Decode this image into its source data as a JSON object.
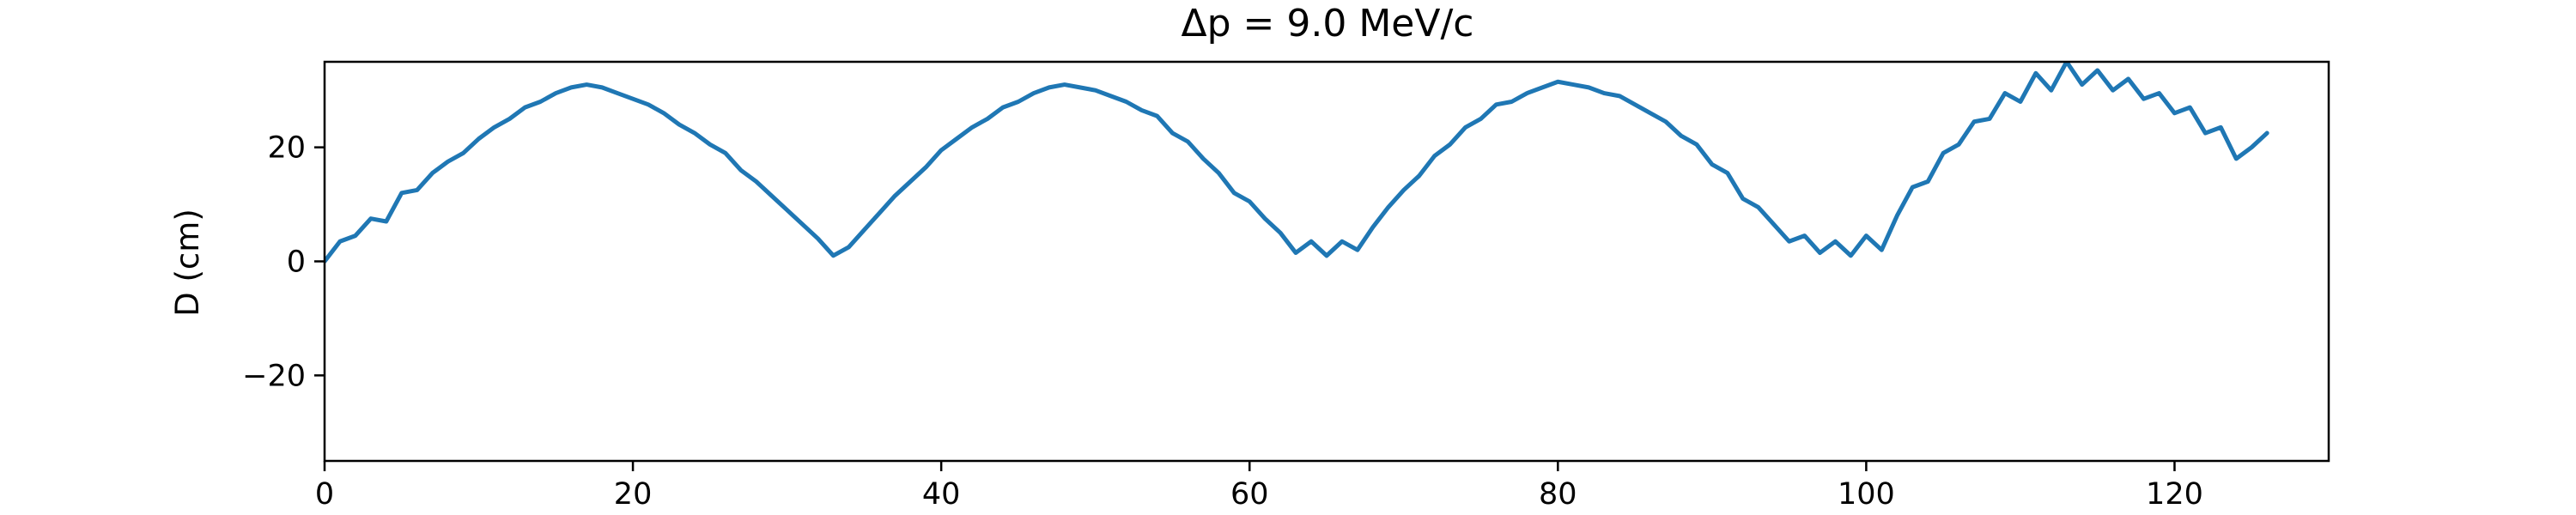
{
  "chart_data": {
    "type": "line",
    "title": "Δp = 9.0 MeV/c",
    "xlabel": "",
    "ylabel": "D (cm)",
    "xlim": [
      0,
      130
    ],
    "ylim": [
      -35,
      35
    ],
    "xticks": [
      0,
      20,
      40,
      60,
      80,
      100,
      120
    ],
    "yticks": [
      -20,
      0,
      20
    ],
    "grid": false,
    "legend": "none",
    "series": [
      {
        "color": "#1f77b4",
        "x": [
          0,
          1,
          2,
          3,
          4,
          5,
          6,
          7,
          8,
          9,
          10,
          11,
          12,
          13,
          14,
          15,
          16,
          17,
          18,
          19,
          20,
          21,
          22,
          23,
          24,
          25,
          26,
          27,
          28,
          29,
          30,
          31,
          32,
          33,
          34,
          35,
          36,
          37,
          38,
          39,
          40,
          41,
          42,
          43,
          44,
          45,
          46,
          47,
          48,
          49,
          50,
          51,
          52,
          53,
          54,
          55,
          56,
          57,
          58,
          59,
          60,
          61,
          62,
          63,
          64,
          65,
          66,
          67,
          68,
          69,
          70,
          71,
          72,
          73,
          74,
          75,
          76,
          77,
          78,
          79,
          80,
          81,
          82,
          83,
          84,
          85,
          86,
          87,
          88,
          89,
          90,
          91,
          92,
          93,
          94,
          95,
          96,
          97,
          98,
          99,
          100,
          101,
          102,
          103,
          104,
          105,
          106,
          107,
          108,
          109,
          110,
          111,
          112,
          113,
          114,
          115,
          116,
          117,
          118,
          119,
          120,
          121,
          122,
          123,
          124,
          125,
          126
        ],
        "y": [
          0.0,
          3.5,
          4.5,
          7.5,
          7.0,
          12.0,
          12.5,
          15.5,
          17.5,
          19.0,
          21.5,
          23.5,
          25.0,
          27.0,
          28.0,
          29.5,
          30.5,
          31.0,
          30.5,
          29.5,
          28.5,
          27.5,
          26.0,
          24.0,
          22.5,
          20.5,
          19.0,
          16.0,
          14.0,
          11.5,
          9.0,
          6.5,
          4.0,
          1.0,
          2.5,
          5.5,
          8.5,
          11.5,
          14.0,
          16.5,
          19.5,
          21.5,
          23.5,
          25.0,
          27.0,
          28.0,
          29.5,
          30.5,
          31.0,
          30.5,
          30.0,
          29.0,
          28.0,
          26.5,
          25.5,
          22.5,
          21.0,
          18.0,
          15.5,
          12.0,
          10.5,
          7.5,
          5.0,
          1.5,
          3.5,
          1.0,
          3.5,
          2.0,
          6.0,
          9.5,
          12.5,
          15.0,
          18.5,
          20.5,
          23.5,
          25.0,
          27.5,
          28.0,
          29.5,
          30.5,
          31.5,
          31.0,
          30.5,
          29.5,
          29.0,
          27.5,
          26.0,
          24.5,
          22.0,
          20.5,
          17.0,
          15.5,
          11.0,
          9.5,
          6.5,
          3.5,
          4.5,
          1.5,
          3.5,
          1.0,
          4.5,
          2.0,
          8.0,
          13.0,
          14.0,
          19.0,
          20.5,
          24.5,
          25.0,
          29.5,
          28.0,
          33.0,
          30.0,
          35.0,
          31.0,
          33.5,
          30.0,
          32.0,
          28.5,
          29.5,
          26.0,
          27.0,
          22.5,
          23.5,
          18.0,
          20.0,
          22.5
        ]
      }
    ]
  }
}
